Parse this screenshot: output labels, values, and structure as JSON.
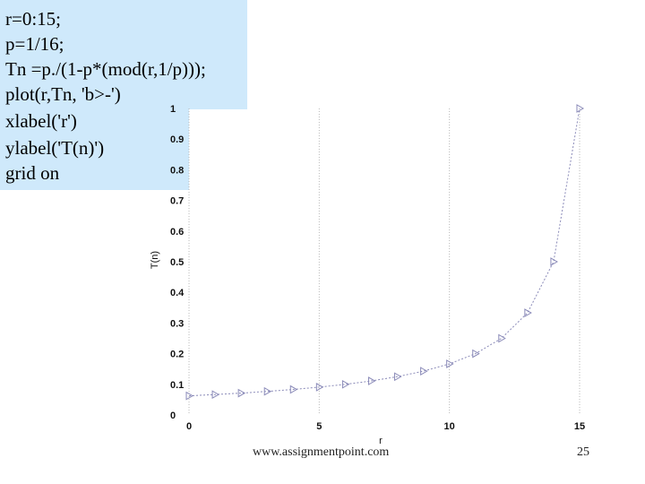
{
  "code": {
    "lines": [
      "r=0:15;",
      "p=1/16;",
      "Tn =p./(1-p*(mod(r,1/p)));",
      "plot(r,Tn, 'b>-')",
      "xlabel('r')",
      "ylabel('T(n)')",
      "grid on"
    ]
  },
  "footer": {
    "url": "www.assignmentpoint.com",
    "page_number": "25"
  },
  "chart_data": {
    "type": "line",
    "xlabel": "r",
    "ylabel": "T(n)",
    "xlim": [
      0,
      15
    ],
    "ylim": [
      0,
      1
    ],
    "x_ticks": [
      "0",
      "5",
      "10",
      "15"
    ],
    "y_ticks": [
      "0",
      "0.1",
      "0.2",
      "0.3",
      "0.4",
      "0.5",
      "0.6",
      "0.7",
      "0.8",
      "0.9",
      "1"
    ],
    "grid": true,
    "marker": "right-triangle",
    "line_style": "dashed",
    "line_color": "#8a8ab8",
    "series": [
      {
        "x": [
          0,
          1,
          2,
          3,
          4,
          5,
          6,
          7,
          8,
          9,
          10,
          11,
          12,
          13,
          14,
          15
        ],
        "values": [
          0.0625,
          0.0667,
          0.0714,
          0.0769,
          0.0833,
          0.0909,
          0.1,
          0.1111,
          0.125,
          0.1429,
          0.1667,
          0.2,
          0.25,
          0.3333,
          0.5,
          1.0
        ]
      }
    ]
  }
}
